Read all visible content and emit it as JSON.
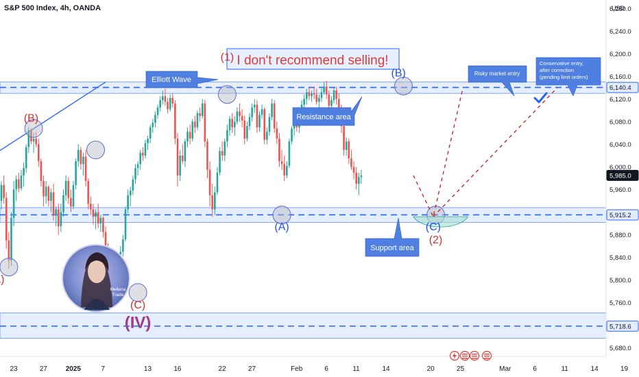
{
  "header": {
    "title": "S&P 500 Index, 4h, OANDA",
    "currency": "USD"
  },
  "colors": {
    "up": "#26a69a",
    "down": "#ef5350",
    "band_fill": "#cfe0fb",
    "band_line": "#2962ff",
    "wave_label": "#d32f2f",
    "wave_label_blue": "#1e53e5",
    "iv_label": "#a23a8c",
    "callout": "#4f7fe0",
    "projection": "#c62828",
    "checkmark": "#2962ff"
  },
  "chart_data": {
    "type": "candlestick",
    "symbol": "S&P 500 Index",
    "timeframe": "4h",
    "source": "OANDA",
    "price_axis": {
      "ylim": [
        5665,
        6295
      ],
      "ticks": [
        6280,
        6240,
        6200,
        6160,
        6120,
        6080,
        6040,
        6000,
        5960,
        5880,
        5840,
        5800,
        5760,
        5680
      ],
      "tick_labels": [
        "6,280.0",
        "6,240.0",
        "6,200.0",
        "6,160.0",
        "6,120.0",
        "6,080.0",
        "6,040.0",
        "6,000.0",
        "5,960.0",
        "5,880.0",
        "5,840.0",
        "5,800.0",
        "5,760.0",
        "5,680.0"
      ]
    },
    "price_tags": [
      {
        "value": 6140.4,
        "label": "6,140.4",
        "style": "blue"
      },
      {
        "value": 5985.0,
        "label": "5,985.0",
        "style": "dark"
      },
      {
        "value": 5915.2,
        "label": "5,915.2",
        "style": "blue"
      },
      {
        "value": 5718.6,
        "label": "5,718.6",
        "style": "blue"
      }
    ],
    "time_axis": {
      "labels": [
        "23",
        "27",
        "2025",
        "7",
        "13",
        "16",
        "22",
        "27",
        "Feb",
        "6",
        "11",
        "14",
        "20",
        "25",
        "Mar",
        "6",
        "11",
        "14",
        "19"
      ],
      "bar_index": [
        0,
        12,
        24,
        36,
        54,
        66,
        84,
        96,
        114,
        126,
        138,
        150,
        168,
        180,
        198,
        210,
        222,
        234,
        246
      ]
    },
    "horizontal_levels": [
      {
        "name": "resistance",
        "value": 6140.4,
        "band": [
          6130,
          6150
        ]
      },
      {
        "name": "support",
        "value": 5915.2,
        "band": [
          5902,
          5928
        ]
      },
      {
        "name": "lower",
        "value": 5718.6,
        "band": [
          5697,
          5742
        ]
      }
    ],
    "trendline": {
      "from": [
        -3,
        6022
      ],
      "to": [
        42,
        6150
      ]
    },
    "candles": [
      [
        5940,
        5975,
        5925,
        5968
      ],
      [
        5968,
        5985,
        5935,
        5945
      ],
      [
        5945,
        5955,
        5855,
        5870
      ],
      [
        5870,
        5885,
        5820,
        5835
      ],
      [
        5835,
        5920,
        5825,
        5910
      ],
      [
        5910,
        5975,
        5895,
        5960
      ],
      [
        5960,
        5985,
        5940,
        5978
      ],
      [
        5978,
        5990,
        5955,
        5962
      ],
      [
        5962,
        5995,
        5958,
        5985
      ],
      [
        5985,
        6008,
        5965,
        5998
      ],
      [
        5998,
        6040,
        5990,
        6035
      ],
      [
        6035,
        6070,
        6025,
        6065
      ],
      [
        6065,
        6068,
        6040,
        6045
      ],
      [
        6045,
        6060,
        6025,
        6050
      ],
      [
        6050,
        6062,
        6035,
        6040
      ],
      [
        6040,
        6050,
        6000,
        6010
      ],
      [
        6010,
        6015,
        5965,
        5975
      ],
      [
        5975,
        5985,
        5930,
        5948
      ],
      [
        5948,
        5975,
        5935,
        5965
      ],
      [
        5965,
        5968,
        5930,
        5940
      ],
      [
        5940,
        5962,
        5920,
        5955
      ],
      [
        5955,
        5970,
        5905,
        5915
      ],
      [
        5915,
        5930,
        5895,
        5925
      ],
      [
        5925,
        5935,
        5880,
        5895
      ],
      [
        5895,
        5935,
        5885,
        5920
      ],
      [
        5920,
        5960,
        5912,
        5950
      ],
      [
        5950,
        5985,
        5940,
        5975
      ],
      [
        5975,
        5982,
        5935,
        5945
      ],
      [
        5945,
        5960,
        5920,
        5930
      ],
      [
        5930,
        5975,
        5925,
        5968
      ],
      [
        5968,
        6015,
        5960,
        6010
      ],
      [
        6010,
        6040,
        6000,
        6030
      ],
      [
        6030,
        6035,
        5995,
        6005
      ],
      [
        6005,
        6025,
        5985,
        6018
      ],
      [
        6018,
        6030,
        5965,
        5975
      ],
      [
        5975,
        5980,
        5925,
        5935
      ],
      [
        5935,
        5948,
        5915,
        5925
      ],
      [
        5925,
        5935,
        5898,
        5912
      ],
      [
        5912,
        5925,
        5890,
        5920
      ],
      [
        5920,
        5935,
        5892,
        5900
      ],
      [
        5900,
        5915,
        5885,
        5910
      ],
      [
        5910,
        5912,
        5875,
        5885
      ],
      [
        5885,
        5895,
        5845,
        5855
      ],
      [
        5855,
        5865,
        5815,
        5825
      ],
      [
        5825,
        5832,
        5790,
        5800
      ],
      [
        5800,
        5812,
        5775,
        5795
      ],
      [
        5795,
        5840,
        5790,
        5830
      ],
      [
        5830,
        5845,
        5815,
        5838
      ],
      [
        5838,
        5860,
        5825,
        5850
      ],
      [
        5850,
        5880,
        5842,
        5872
      ],
      [
        5872,
        5930,
        5868,
        5925
      ],
      [
        5925,
        5960,
        5918,
        5950
      ],
      [
        5950,
        5965,
        5930,
        5958
      ],
      [
        5958,
        5985,
        5950,
        5978
      ],
      [
        5978,
        6005,
        5970,
        5998
      ],
      [
        5998,
        6010,
        5985,
        6005
      ],
      [
        6005,
        6030,
        5995,
        6025
      ],
      [
        6025,
        6035,
        6010,
        6020
      ],
      [
        6020,
        6048,
        6015,
        6042
      ],
      [
        6042,
        6055,
        6030,
        6050
      ],
      [
        6050,
        6075,
        6042,
        6070
      ],
      [
        6070,
        6085,
        6060,
        6078
      ],
      [
        6078,
        6098,
        6070,
        6092
      ],
      [
        6092,
        6110,
        6085,
        6105
      ],
      [
        6105,
        6125,
        6098,
        6118
      ],
      [
        6118,
        6135,
        6110,
        6125
      ],
      [
        6125,
        6138,
        6108,
        6115
      ],
      [
        6115,
        6122,
        6095,
        6102
      ],
      [
        6102,
        6128,
        6098,
        6122
      ],
      [
        6122,
        6130,
        6105,
        6112
      ],
      [
        6112,
        6118,
        6040,
        6050
      ],
      [
        6050,
        6060,
        5965,
        5985
      ],
      [
        5985,
        6030,
        5975,
        6020
      ],
      [
        6020,
        6040,
        6005,
        6010
      ],
      [
        6010,
        6050,
        6000,
        6045
      ],
      [
        6045,
        6070,
        6035,
        6062
      ],
      [
        6062,
        6075,
        6040,
        6050
      ],
      [
        6050,
        6085,
        6045,
        6080
      ],
      [
        6080,
        6090,
        6060,
        6070
      ],
      [
        6070,
        6100,
        6065,
        6095
      ],
      [
        6095,
        6105,
        6080,
        6090
      ],
      [
        6090,
        6120,
        6085,
        6112
      ],
      [
        6112,
        6118,
        6035,
        6045
      ],
      [
        6045,
        6050,
        5980,
        5995
      ],
      [
        5995,
        6010,
        5930,
        5950
      ],
      [
        5950,
        5970,
        5912,
        5925
      ],
      [
        5925,
        5965,
        5915,
        5955
      ],
      [
        5955,
        6000,
        5950,
        5990
      ],
      [
        5990,
        6035,
        5985,
        6028
      ],
      [
        6028,
        6045,
        6010,
        6020
      ],
      [
        6020,
        6050,
        6010,
        6045
      ],
      [
        6045,
        6075,
        6035,
        6065
      ],
      [
        6065,
        6090,
        6055,
        6085
      ],
      [
        6085,
        6095,
        6060,
        6070
      ],
      [
        6070,
        6090,
        6055,
        6080
      ],
      [
        6080,
        6105,
        6075,
        6098
      ],
      [
        6098,
        6112,
        6080,
        6090
      ],
      [
        6090,
        6102,
        6070,
        6082
      ],
      [
        6082,
        6090,
        6040,
        6050
      ],
      [
        6050,
        6080,
        6045,
        6072
      ],
      [
        6072,
        6095,
        6065,
        6088
      ],
      [
        6088,
        6112,
        6080,
        6105
      ],
      [
        6105,
        6120,
        6095,
        6110
      ],
      [
        6110,
        6118,
        6060,
        6070
      ],
      [
        6070,
        6098,
        6062,
        6092
      ],
      [
        6092,
        6110,
        6085,
        6102
      ],
      [
        6102,
        6105,
        6040,
        6048
      ],
      [
        6048,
        6070,
        6040,
        6062
      ],
      [
        6062,
        6095,
        6055,
        6088
      ],
      [
        6088,
        6120,
        6082,
        6112
      ],
      [
        6112,
        6118,
        6060,
        6068
      ],
      [
        6068,
        6080,
        6040,
        6050
      ],
      [
        6050,
        6060,
        6000,
        6010
      ],
      [
        6010,
        6030,
        5995,
        6005
      ],
      [
        6005,
        6020,
        5975,
        5985
      ],
      [
        5985,
        6010,
        5980,
        6002
      ],
      [
        6002,
        6050,
        5998,
        6045
      ],
      [
        6045,
        6072,
        6040,
        6068
      ],
      [
        6068,
        6085,
        6055,
        6078
      ],
      [
        6078,
        6090,
        6062,
        6070
      ],
      [
        6070,
        6095,
        6060,
        6088
      ],
      [
        6088,
        6118,
        6082,
        6110
      ],
      [
        6110,
        6128,
        6098,
        6120
      ],
      [
        6120,
        6138,
        6110,
        6132
      ],
      [
        6132,
        6140,
        6118,
        6125
      ],
      [
        6125,
        6135,
        6115,
        6130
      ],
      [
        6130,
        6142,
        6120,
        6128
      ],
      [
        6128,
        6138,
        6110,
        6115
      ],
      [
        6115,
        6128,
        6100,
        6122
      ],
      [
        6122,
        6138,
        6115,
        6132
      ],
      [
        6132,
        6150,
        6128,
        6142
      ],
      [
        6142,
        6152,
        6120,
        6128
      ],
      [
        6128,
        6135,
        6100,
        6108
      ],
      [
        6108,
        6125,
        6098,
        6118
      ],
      [
        6118,
        6140,
        6112,
        6135
      ],
      [
        6135,
        6142,
        6110,
        6120
      ],
      [
        6120,
        6130,
        6095,
        6100
      ],
      [
        6100,
        6110,
        6060,
        6072
      ],
      [
        6072,
        6080,
        6020,
        6030
      ],
      [
        6030,
        6052,
        6020,
        6045
      ],
      [
        6045,
        6050,
        6005,
        6015
      ],
      [
        6015,
        6030,
        5995,
        6000
      ],
      [
        6000,
        6010,
        5978,
        5990
      ],
      [
        5990,
        6000,
        5960,
        5970
      ],
      [
        5970,
        5990,
        5950,
        5982
      ],
      [
        5982,
        5995,
        5970,
        5985
      ]
    ],
    "projections": [
      {
        "name": "risky-path",
        "points": [
          [
            166,
            5985
          ],
          [
            174,
            5912
          ],
          [
            186,
            6140
          ]
        ]
      },
      {
        "name": "conservative-path",
        "points": [
          [
            174,
            5912
          ],
          [
            224,
            6140
          ]
        ]
      }
    ],
    "annotations": {
      "headline": "I don't recommend selling!",
      "callouts": [
        {
          "id": "elliott",
          "text": "Elliott Wave"
        },
        {
          "id": "resistance",
          "text": "Resistance area"
        },
        {
          "id": "support",
          "text": "Support area"
        },
        {
          "id": "risky",
          "text": "Risky market entry"
        },
        {
          "id": "conservative",
          "lines": [
            "Conservative entry,",
            "after correction",
            "(pending limit orders)"
          ]
        }
      ],
      "wave_labels": [
        {
          "text": "A)",
          "bar": -1,
          "price": 5795,
          "color": "red"
        },
        {
          "text": "(B)",
          "bar": 12,
          "price": 6080,
          "color": "red"
        },
        {
          "text": "(1)",
          "bar": 91,
          "price": 6188,
          "color": "red"
        },
        {
          "text": "(A)",
          "bar": 113,
          "price": 5888,
          "color": "blue"
        },
        {
          "text": "(B)",
          "bar": 160,
          "price": 6160,
          "color": "blue"
        },
        {
          "text": "(C)",
          "bar": 174,
          "price": 5888,
          "color": "blue"
        },
        {
          "text": "(2)",
          "bar": 175,
          "price": 5865,
          "color": "red"
        },
        {
          "text": "(C)",
          "bar": 55,
          "price": 5750,
          "color": "red"
        },
        {
          "text": "(IV)",
          "bar": 55,
          "price": 5715,
          "color": "purple"
        }
      ],
      "markers": [
        {
          "bar": 3,
          "price": 5823
        },
        {
          "bar": 13,
          "price": 6068
        },
        {
          "bar": 38,
          "price": 6030
        },
        {
          "bar": 55,
          "price": 5778
        },
        {
          "bar": 91,
          "price": 6128
        },
        {
          "bar": 113,
          "price": 5915
        },
        {
          "bar": 162,
          "price": 6143
        },
        {
          "bar": 175,
          "price": 5915
        }
      ],
      "avatar_text": [
        "Mellena",
        "Trade"
      ]
    }
  }
}
